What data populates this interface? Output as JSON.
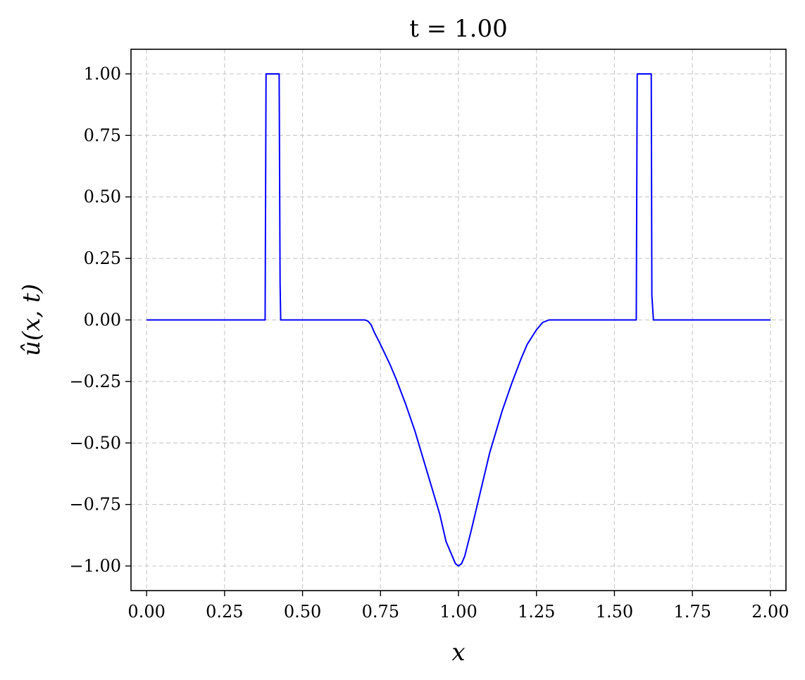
{
  "chart_data": {
    "type": "line",
    "title": "t = 1.00",
    "xlabel": "x",
    "ylabel": "û(x, t)",
    "xlim": [
      -0.05,
      2.05
    ],
    "ylim": [
      -1.1,
      1.1
    ],
    "grid": true,
    "line_color": "#0000ff",
    "grid_color": "#cccccc",
    "x_ticks": [
      0.0,
      0.25,
      0.5,
      0.75,
      1.0,
      1.25,
      1.5,
      1.75,
      2.0
    ],
    "x_tick_labels": [
      "0.00",
      "0.25",
      "0.50",
      "0.75",
      "1.00",
      "1.25",
      "1.50",
      "1.75",
      "2.00"
    ],
    "y_ticks": [
      1.0,
      0.75,
      0.5,
      0.25,
      0.0,
      -0.25,
      -0.5,
      -0.75,
      -1.0
    ],
    "y_tick_labels": [
      "1.00",
      "0.75",
      "0.50",
      "0.25",
      "0.00",
      "−0.25",
      "−0.50",
      "−0.75",
      "−1.00"
    ],
    "series": [
      {
        "x": [
          0.0,
          0.38,
          0.383,
          0.425,
          0.428,
          0.43,
          0.5,
          0.6,
          0.7,
          0.71,
          0.72,
          0.73,
          0.75,
          0.78,
          0.8,
          0.83,
          0.86,
          0.9,
          0.94,
          0.96,
          0.98,
          0.99,
          1.0,
          1.01,
          1.02,
          1.04,
          1.07,
          1.1,
          1.14,
          1.17,
          1.2,
          1.22,
          1.25,
          1.27,
          1.28,
          1.29,
          1.3,
          1.4,
          1.5,
          1.57,
          1.573,
          1.618,
          1.62,
          1.625,
          1.7,
          1.8,
          1.9,
          2.0
        ],
        "y": [
          0.0,
          0.0,
          1.0,
          1.0,
          0.15,
          0.0,
          0.0,
          0.0,
          0.0,
          -0.005,
          -0.02,
          -0.05,
          -0.1,
          -0.18,
          -0.24,
          -0.34,
          -0.45,
          -0.62,
          -0.79,
          -0.9,
          -0.96,
          -0.99,
          -1.0,
          -0.99,
          -0.96,
          -0.86,
          -0.7,
          -0.54,
          -0.37,
          -0.26,
          -0.16,
          -0.1,
          -0.04,
          -0.01,
          -0.005,
          0.0,
          0.0,
          0.0,
          0.0,
          0.0,
          1.0,
          1.0,
          0.1,
          0.0,
          0.0,
          0.0,
          0.0,
          0.0
        ]
      }
    ]
  }
}
